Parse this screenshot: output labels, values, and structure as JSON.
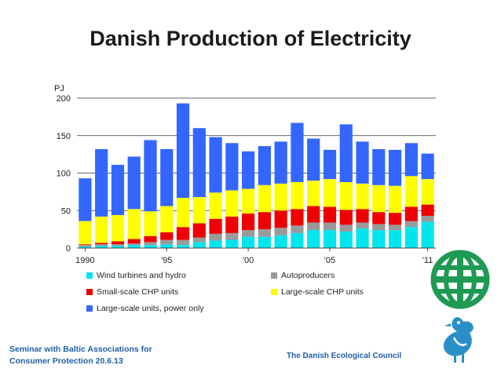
{
  "slide": {
    "title": "Danish Production of Electricity",
    "footer_left_line1": "Seminar with Baltic Associations for",
    "footer_left_line2": "Consumer Protection 20.6.13",
    "footer_right": "The Danish Ecological Council"
  },
  "chart_data": {
    "type": "bar",
    "stacked": true,
    "title": "",
    "ylabel": "PJ",
    "xlabel": "",
    "ylim": [
      0,
      200
    ],
    "yticks": [
      0,
      50,
      100,
      150,
      200
    ],
    "grid": true,
    "legend_position": "bottom",
    "categories": [
      "1990",
      "1991",
      "1992",
      "1993",
      "1994",
      "1995",
      "1996",
      "1997",
      "1998",
      "1999",
      "2000",
      "2001",
      "2002",
      "2003",
      "2004",
      "2005",
      "2006",
      "2007",
      "2008",
      "2009",
      "2010",
      "2011"
    ],
    "x_tick_labels": [
      {
        "label": "1990",
        "index": 0
      },
      {
        "label": "'95",
        "index": 5
      },
      {
        "label": "'00",
        "index": 10
      },
      {
        "label": "'05",
        "index": 15
      },
      {
        "label": "'11",
        "index": 21
      }
    ],
    "series": [
      {
        "name": "Wind turbines and hydro",
        "color": "#00e5ee",
        "values": [
          2,
          3,
          3,
          4,
          4,
          5,
          4,
          8,
          10,
          11,
          15,
          15,
          17,
          20,
          24,
          24,
          22,
          26,
          24,
          24,
          28,
          35
        ]
      },
      {
        "name": "Autoproducers",
        "color": "#9a9a9a",
        "values": [
          2,
          2,
          2,
          2,
          4,
          6,
          7,
          6,
          9,
          9,
          9,
          10,
          10,
          10,
          10,
          10,
          9,
          8,
          8,
          7,
          8,
          8
        ]
      },
      {
        "name": "Small-scale CHP units",
        "color": "#ee0000",
        "values": [
          1,
          2,
          4,
          6,
          8,
          10,
          17,
          19,
          20,
          22,
          22,
          23,
          23,
          22,
          22,
          21,
          20,
          18,
          16,
          16,
          19,
          15
        ]
      },
      {
        "name": "Large-scale CHP units",
        "color": "#ffff00",
        "values": [
          31,
          35,
          35,
          40,
          33,
          35,
          39,
          35,
          35,
          35,
          33,
          36,
          36,
          36,
          34,
          37,
          37,
          34,
          36,
          36,
          41,
          34
        ]
      },
      {
        "name": "Large-scale units, power only",
        "color": "#3366ff",
        "values": [
          57,
          90,
          67,
          70,
          95,
          76,
          126,
          92,
          74,
          63,
          50,
          52,
          56,
          79,
          56,
          39,
          77,
          56,
          48,
          48,
          44,
          34
        ]
      }
    ]
  }
}
